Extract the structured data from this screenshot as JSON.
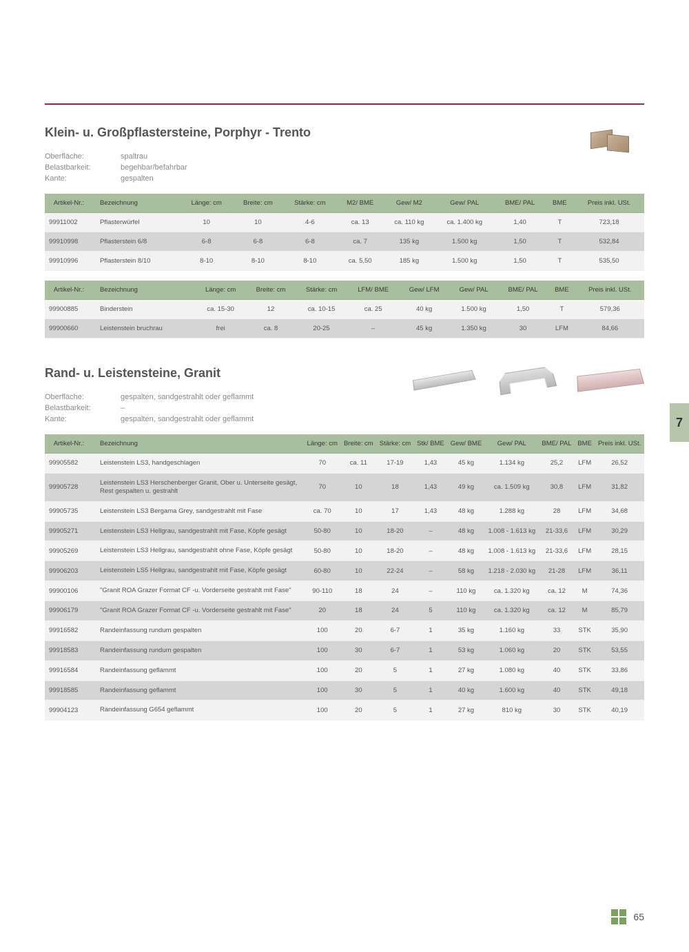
{
  "colors": {
    "rule": "#922b3e",
    "header_bg": "#a8be9c",
    "row_even": "#d5d5d5",
    "row_odd": "#f2f2f2",
    "text_muted": "#8a8a8a",
    "sidetab_bg": "#b5c6aa",
    "logo_green": "#7aa362"
  },
  "page_number": "65",
  "sidetab": "7",
  "section1": {
    "title": "Klein- u. Großpflastersteine, Porphyr - Trento",
    "spec_labels": {
      "surface": "Oberfläche:",
      "load": "Belastbarkeit:",
      "edge": "Kante:"
    },
    "spec_values": {
      "surface": "spaltrau",
      "load": "begehbar/befahrbar",
      "edge": "gespalten"
    },
    "table_a": {
      "headers": [
        "Artikel-Nr.:",
        "Bezeichnung",
        "Länge: cm",
        "Breite: cm",
        "Stärke: cm",
        "M2/ BME",
        "Gew/ M2",
        "Gew/ PAL",
        "BME/ PAL",
        "BME",
        "Preis inkl. USt."
      ],
      "rows": [
        [
          "99911002",
          "Pflasterwürfel",
          "10",
          "10",
          "4-6",
          "ca. 13",
          "ca. 110 kg",
          "ca. 1.400 kg",
          "1,40",
          "T",
          "723,18"
        ],
        [
          "99910998",
          "Pflasterstein 6/8",
          "6-8",
          "6-8",
          "6-8",
          "ca. 7",
          "135 kg",
          "1.500 kg",
          "1,50",
          "T",
          "532,84"
        ],
        [
          "99910996",
          "Pflasterstein 8/10",
          "8-10",
          "8-10",
          "8-10",
          "ca. 5,50",
          "185 kg",
          "1.500 kg",
          "1,50",
          "T",
          "535,50"
        ]
      ]
    },
    "table_b": {
      "headers": [
        "Artikel-Nr.:",
        "Bezeichnung",
        "Länge: cm",
        "Breite: cm",
        "Stärke: cm",
        "LFM/ BME",
        "Gew/ LFM",
        "Gew/ PAL",
        "BME/ PAL",
        "BME",
        "Preis inkl. USt."
      ],
      "rows": [
        [
          "99900885",
          "Binderstein",
          "ca. 15-30",
          "12",
          "ca. 10-15",
          "ca. 25",
          "40 kg",
          "1.500 kg",
          "1,50",
          "T",
          "579,36"
        ],
        [
          "99900660",
          "Leistenstein bruchrau",
          "frei",
          "ca. 8",
          "20-25",
          "–",
          "45 kg",
          "1.350 kg",
          "30",
          "LFM",
          "84,66"
        ]
      ]
    }
  },
  "section2": {
    "title": "Rand- u. Leistensteine, Granit",
    "spec_labels": {
      "surface": "Oberfläche:",
      "load": "Belastbarkeit:",
      "edge": "Kante:"
    },
    "spec_values": {
      "surface": "gespalten, sandgestrahlt oder geflammt",
      "load": "–",
      "edge": "gespalten, sandgestrahlt oder geflammt"
    },
    "table": {
      "headers": [
        "Artikel-Nr.:",
        "Bezeichnung",
        "Länge: cm",
        "Breite: cm",
        "Stärke: cm",
        "Stk/ BME",
        "Gew/ BME",
        "Gew/ PAL",
        "BME/ PAL",
        "BME",
        "Preis inkl. USt."
      ],
      "rows": [
        [
          "99905582",
          "Leistenstein LS3, handgeschlagen",
          "70",
          "ca. 11",
          "17-19",
          "1,43",
          "45 kg",
          "1.134 kg",
          "25,2",
          "LFM",
          "26,52"
        ],
        [
          "99905728",
          "Leistenstein LS3 Herschenberger Granit, Ober u. Unterseite gesägt, Rest gespalten u. gestrahlt",
          "70",
          "10",
          "18",
          "1,43",
          "49 kg",
          "ca. 1.509 kg",
          "30,8",
          "LFM",
          "31,82"
        ],
        [
          "99905735",
          "Leistenstein LS3 Bergama Grey, sandgestrahlt mit Fase",
          "ca. 70",
          "10",
          "17",
          "1,43",
          "48 kg",
          "1.288 kg",
          "28",
          "LFM",
          "34,68"
        ],
        [
          "99905271",
          "Leistenstein LS3 Hellgrau, sandgestrahlt mit Fase, Köpfe gesägt",
          "50-80",
          "10",
          "18-20",
          "–",
          "48 kg",
          "1.008 - 1.613 kg",
          "21-33,6",
          "LFM",
          "30,29"
        ],
        [
          "99905269",
          "Leistenstein LS3 Hellgrau, sandgestrahlt ohne Fase, Köpfe gesägt",
          "50-80",
          "10",
          "18-20",
          "–",
          "48 kg",
          "1.008 - 1.613 kg",
          "21-33,6",
          "LFM",
          "28,15"
        ],
        [
          "99906203",
          "Leistenstein LS5 Hellgrau, sandgestrahlt mit Fase, Köpfe gesägt",
          "60-80",
          "10",
          "22-24",
          "–",
          "58 kg",
          "1.218 - 2.030 kg",
          "21-28",
          "LFM",
          "36,11"
        ],
        [
          "99900106",
          "\"Granit ROA Grazer Format CF -u. Vorderseite gestrahlt mit Fase\"",
          "90-110",
          "18",
          "24",
          "–",
          "110 kg",
          "ca. 1.320 kg",
          "ca. 12",
          "M",
          "74,36"
        ],
        [
          "99906179",
          "\"Granit ROA Grazer Format CF -u. Vorderseite gestrahlt mit Fase\"",
          "20",
          "18",
          "24",
          "5",
          "110 kg",
          "ca. 1.320 kg",
          "ca. 12",
          "M",
          "85,79"
        ],
        [
          "99916582",
          "Randeinfassung rundum gespalten",
          "100",
          "20",
          "6-7",
          "1",
          "35 kg",
          "1.160 kg",
          "33",
          "STK",
          "35,90"
        ],
        [
          "99918583",
          "Randeinfassung rundum gespalten",
          "100",
          "30",
          "6-7",
          "1",
          "53 kg",
          "1.060 kg",
          "20",
          "STK",
          "53,55"
        ],
        [
          "99916584",
          "Randeinfassung geflammt",
          "100",
          "20",
          "5",
          "1",
          "27 kg",
          "1.080 kg",
          "40",
          "STK",
          "33,86"
        ],
        [
          "99918585",
          "Randeinfassung geflammt",
          "100",
          "30",
          "5",
          "1",
          "40 kg",
          "1.600 kg",
          "40",
          "STK",
          "49,18"
        ],
        [
          "99904123",
          "Randeinfassung G654 geflammt",
          "100",
          "20",
          "5",
          "1",
          "27 kg",
          "810 kg",
          "30",
          "STK",
          "40,19"
        ]
      ]
    }
  }
}
